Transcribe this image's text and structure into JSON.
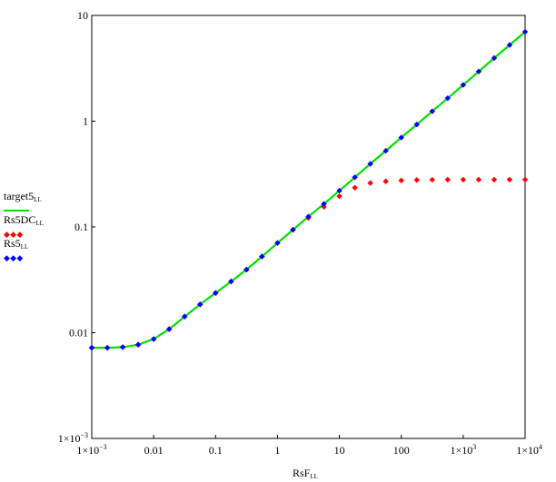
{
  "chart_data": {
    "type": "line",
    "xlabel": "RsF",
    "xlabel_sub": "LL",
    "ylabel": "",
    "xscale": "log",
    "yscale": "log",
    "xlim": [
      0.001,
      10000
    ],
    "ylim": [
      0.001,
      10
    ],
    "grid": false,
    "legend_position": "left",
    "x_ticks": [
      {
        "value": 0.001,
        "label": "1×10",
        "sup": "−3"
      },
      {
        "value": 0.01,
        "label": "0.01",
        "sup": ""
      },
      {
        "value": 0.1,
        "label": "0.1",
        "sup": ""
      },
      {
        "value": 1,
        "label": "1",
        "sup": ""
      },
      {
        "value": 10,
        "label": "10",
        "sup": ""
      },
      {
        "value": 100,
        "label": "100",
        "sup": ""
      },
      {
        "value": 1000,
        "label": "1×10",
        "sup": "3"
      },
      {
        "value": 10000,
        "label": "1×10",
        "sup": "4"
      }
    ],
    "y_ticks": [
      {
        "value": 0.001,
        "label": "1×10",
        "sup": "−3"
      },
      {
        "value": 0.01,
        "label": "0.01",
        "sup": ""
      },
      {
        "value": 0.1,
        "label": "0.1",
        "sup": ""
      },
      {
        "value": 1,
        "label": "1",
        "sup": ""
      },
      {
        "value": 10,
        "label": "10",
        "sup": ""
      }
    ],
    "x": [
      0.001,
      0.00178,
      0.00316,
      0.00562,
      0.01,
      0.0178,
      0.0316,
      0.0562,
      0.1,
      0.178,
      0.316,
      0.562,
      1,
      1.78,
      3.16,
      5.62,
      10,
      17.8,
      31.6,
      56.2,
      100,
      178,
      316,
      562,
      1000,
      1780,
      3160,
      5620,
      10000
    ],
    "series": [
      {
        "name": "target5",
        "name_sub": "LL",
        "style": "line",
        "color": "#00e000",
        "values": [
          0.0072,
          0.0072,
          0.0073,
          0.0077,
          0.0087,
          0.0108,
          0.0142,
          0.0185,
          0.0237,
          0.0305,
          0.0395,
          0.0525,
          0.0705,
          0.094,
          0.125,
          0.165,
          0.22,
          0.295,
          0.395,
          0.525,
          0.7,
          0.93,
          1.24,
          1.65,
          2.2,
          2.95,
          3.95,
          5.25,
          7.0
        ]
      },
      {
        "name": "Rs5DC",
        "name_sub": "LL",
        "style": "markers",
        "color": "#ff0000",
        "values": [
          0.0072,
          0.0072,
          0.0073,
          0.0077,
          0.0087,
          0.0108,
          0.0142,
          0.0185,
          0.0237,
          0.0305,
          0.0395,
          0.0525,
          0.0705,
          0.094,
          0.122,
          0.155,
          0.195,
          0.235,
          0.26,
          0.27,
          0.275,
          0.278,
          0.279,
          0.28,
          0.28,
          0.28,
          0.28,
          0.28,
          0.28
        ]
      },
      {
        "name": "Rs5",
        "name_sub": "LL",
        "style": "markers",
        "color": "#0000ff",
        "values": [
          0.0072,
          0.0072,
          0.0073,
          0.0077,
          0.0087,
          0.0108,
          0.0142,
          0.0185,
          0.0237,
          0.0305,
          0.0395,
          0.0525,
          0.0705,
          0.094,
          0.125,
          0.165,
          0.22,
          0.295,
          0.395,
          0.525,
          0.7,
          0.93,
          1.24,
          1.65,
          2.2,
          2.95,
          3.95,
          5.25,
          7.0
        ]
      }
    ]
  }
}
